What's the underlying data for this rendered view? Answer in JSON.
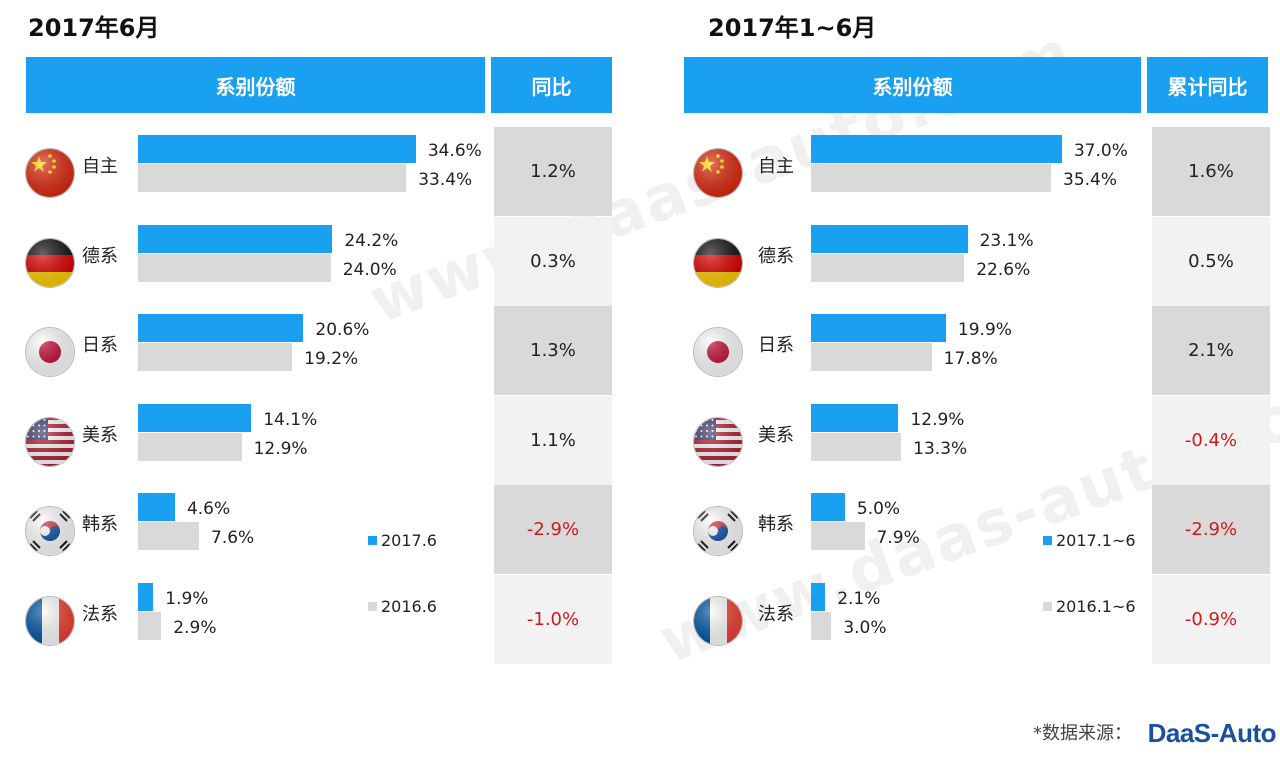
{
  "chart_data": [
    {
      "type": "bar",
      "title": "2017年6月",
      "share_header": "系别份额",
      "yoy_header": "同比",
      "categories": [
        "自主",
        "德系",
        "日系",
        "美系",
        "韩系",
        "法系"
      ],
      "flags": [
        "china-flag-icon",
        "germany-flag-icon",
        "japan-flag-icon",
        "usa-flag-icon",
        "korea-flag-icon",
        "france-flag-icon"
      ],
      "series": [
        {
          "name": "2017.6",
          "color": "#1aa0f0",
          "values": [
            34.6,
            24.2,
            20.6,
            14.1,
            4.6,
            1.9
          ]
        },
        {
          "name": "2016.6",
          "color": "#d9d9d9",
          "values": [
            33.4,
            24.0,
            19.2,
            12.9,
            7.6,
            2.9
          ]
        }
      ],
      "value_labels_current": [
        "34.6%",
        "24.2%",
        "20.6%",
        "14.1%",
        "4.6%",
        "1.9%"
      ],
      "value_labels_previous": [
        "33.4%",
        "24.0%",
        "19.2%",
        "12.9%",
        "7.6%",
        "2.9%"
      ],
      "yoy": [
        1.2,
        0.3,
        1.3,
        1.1,
        -2.9,
        -1.0
      ],
      "yoy_labels": [
        "1.2%",
        "0.3%",
        "1.3%",
        "1.1%",
        "-2.9%",
        "-1.0%"
      ],
      "legend": [
        "2017.6",
        "2016.6"
      ],
      "xlim": [
        0,
        40
      ]
    },
    {
      "type": "bar",
      "title": "2017年1~6月",
      "share_header": "系别份额",
      "yoy_header": "累计同比",
      "categories": [
        "自主",
        "德系",
        "日系",
        "美系",
        "韩系",
        "法系"
      ],
      "flags": [
        "china-flag-icon",
        "germany-flag-icon",
        "japan-flag-icon",
        "usa-flag-icon",
        "korea-flag-icon",
        "france-flag-icon"
      ],
      "series": [
        {
          "name": "2017.1~6",
          "color": "#1aa0f0",
          "values": [
            37.0,
            23.1,
            19.9,
            12.9,
            5.0,
            2.1
          ]
        },
        {
          "name": "2016.1~6",
          "color": "#d9d9d9",
          "values": [
            35.4,
            22.6,
            17.8,
            13.3,
            7.9,
            3.0
          ]
        }
      ],
      "value_labels_current": [
        "37.0%",
        "23.1%",
        "19.9%",
        "12.9%",
        "5.0%",
        "2.1%"
      ],
      "value_labels_previous": [
        "35.4%",
        "22.6%",
        "17.8%",
        "13.3%",
        "7.9%",
        "3.0%"
      ],
      "yoy": [
        1.6,
        0.5,
        2.1,
        -0.4,
        -2.9,
        -0.9
      ],
      "yoy_labels": [
        "1.6%",
        "0.5%",
        "2.1%",
        "-0.4%",
        "-2.9%",
        "-0.9%"
      ],
      "legend": [
        "2017.1~6",
        "2016.1~6"
      ],
      "xlim": [
        0,
        40
      ]
    }
  ],
  "watermark": "www.daas-auto.com",
  "footer": {
    "source_label": "*数据来源：",
    "logo_text": "DaaS-Auto"
  },
  "colors": {
    "accent": "#1aa0f0",
    "negative": "#d21a1a",
    "prev": "#d9d9d9"
  }
}
